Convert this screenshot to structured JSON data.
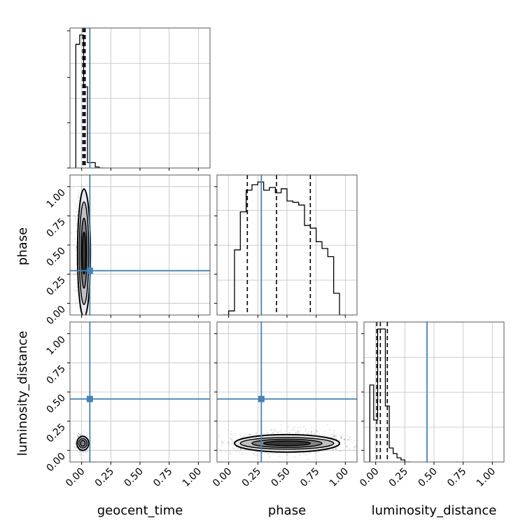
{
  "chart_data": {
    "type": "corner",
    "parameters": [
      "geocent_time",
      "phase",
      "luminosity_distance"
    ],
    "axis_range": [
      -0.1,
      1.1
    ],
    "tick_values": [
      0.0,
      0.25,
      0.5,
      0.75,
      1.0
    ],
    "tick_labels": [
      "0.00",
      "0.25",
      "0.50",
      "0.75",
      "1.00"
    ],
    "truth": {
      "geocent_time": 0.07,
      "phase": 0.28,
      "luminosity_distance": 0.44
    },
    "colors": {
      "truth": "#4682b4",
      "hist": "#000000",
      "grid": "#c0c0c0"
    },
    "grid": true,
    "histograms": [
      {
        "parameter": "geocent_time",
        "bin_edges": [
          -0.05,
          -0.017,
          0.017,
          0.05,
          0.083,
          0.117,
          0.15,
          0.2
        ],
        "counts": [
          0.93,
          1.0,
          0.61,
          0.04,
          0.04,
          0.008,
          0.0
        ],
        "quantiles": [
          0.01,
          0.02,
          0.03
        ]
      },
      {
        "parameter": "phase",
        "bin_edges": [
          -0.05,
          0.0,
          0.05,
          0.1,
          0.15,
          0.2,
          0.25,
          0.3,
          0.35,
          0.4,
          0.45,
          0.5,
          0.55,
          0.6,
          0.65,
          0.7,
          0.75,
          0.8,
          0.85,
          0.9,
          0.95,
          1.0
        ],
        "counts": [
          0.0,
          0.03,
          0.48,
          0.76,
          0.92,
          0.96,
          0.98,
          0.92,
          0.94,
          0.9,
          0.93,
          0.84,
          0.83,
          0.81,
          0.66,
          0.64,
          0.54,
          0.49,
          0.43,
          0.16,
          0.0
        ],
        "quantiles": [
          0.16,
          0.41,
          0.7
        ]
      },
      {
        "parameter": "luminosity_distance",
        "bin_edges": [
          -0.05,
          -0.017,
          0.017,
          0.05,
          0.083,
          0.117,
          0.15,
          0.183,
          0.217,
          0.25,
          0.3
        ],
        "counts": [
          0.55,
          0.3,
          0.95,
          0.95,
          0.4,
          0.1,
          0.06,
          0.03,
          0.015,
          0.0
        ],
        "quantiles": [
          0.01,
          0.04,
          0.1
        ]
      }
    ],
    "density_blobs": [
      {
        "x": "geocent_time",
        "y": "phase",
        "center": [
          0.0,
          0.45
        ],
        "spread": [
          0.025,
          0.22
        ],
        "count": 700
      },
      {
        "x": "geocent_time",
        "y": "luminosity_distance",
        "center": [
          0.0,
          0.06
        ],
        "spread": [
          0.022,
          0.035
        ],
        "count": 450
      },
      {
        "x": "phase",
        "y": "luminosity_distance",
        "center": [
          0.5,
          0.07
        ],
        "spread": [
          0.27,
          0.045
        ],
        "count": 900
      }
    ],
    "contours": [
      {
        "x": "geocent_time",
        "y": "phase",
        "center": [
          0.02,
          0.43
        ],
        "radii": [
          [
            0.055,
            0.55
          ],
          [
            0.04,
            0.44
          ],
          [
            0.025,
            0.3
          ],
          [
            0.015,
            0.18
          ]
        ]
      },
      {
        "x": "geocent_time",
        "y": "luminosity_distance",
        "center": [
          0.01,
          0.06
        ],
        "radii": [
          [
            0.05,
            0.06
          ],
          [
            0.035,
            0.04
          ],
          [
            0.02,
            0.025
          ]
        ]
      },
      {
        "x": "phase",
        "y": "luminosity_distance",
        "center": [
          0.5,
          0.06
        ],
        "radii": [
          [
            0.45,
            0.075
          ],
          [
            0.4,
            0.05
          ],
          [
            0.3,
            0.035
          ],
          [
            0.2,
            0.02
          ]
        ]
      }
    ]
  }
}
